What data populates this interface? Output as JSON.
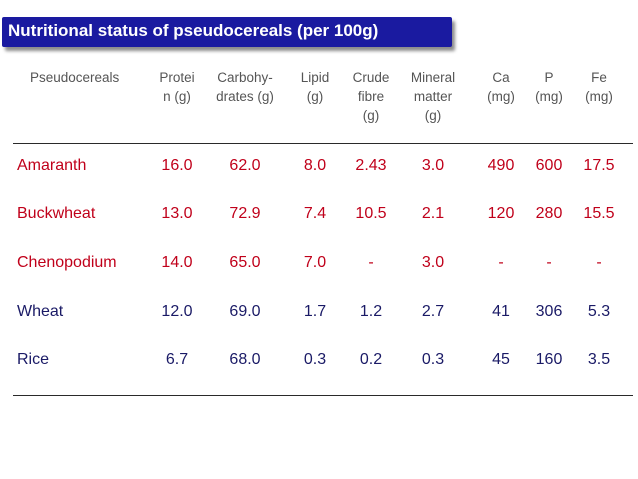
{
  "title": "Nutritional status of pseudocereals (per 100g)",
  "colors": {
    "title_bg": "#1a1aa0",
    "title_text": "#ffffff",
    "accent": "#c0001a",
    "row_text": "#1a1a66"
  },
  "table": {
    "headers": [
      "Pseudocereals",
      "Protei\nn (g)",
      "Carbohy-\ndrates (g)",
      "Lipid\n(g)",
      "Crude\nfibre\n(g)",
      "Mineral\nmatter\n(g)",
      "Ca\n(mg)",
      "P\n(mg)",
      "Fe\n(mg)"
    ],
    "rows": [
      {
        "name": "Amaranth",
        "values": [
          "16.0",
          "62.0",
          "8.0",
          "2.43",
          "3.0",
          "490",
          "600",
          "17.5"
        ],
        "highlight": true
      },
      {
        "name": "Buckwheat",
        "values": [
          "13.0",
          "72.9",
          "7.4",
          "10.5",
          "2.1",
          "120",
          "280",
          "15.5"
        ],
        "highlight": true
      },
      {
        "name": "Chenopodium",
        "values": [
          "14.0",
          "65.0",
          "7.0",
          "-",
          "3.0",
          "-",
          "-",
          "-"
        ],
        "highlight": true
      },
      {
        "name": "Wheat",
        "values": [
          "12.0",
          "69.0",
          "1.7",
          "1.2",
          "2.7",
          "41",
          "306",
          "5.3"
        ],
        "highlight": false
      },
      {
        "name": "Rice",
        "values": [
          "6.7",
          "68.0",
          "0.3",
          "0.2",
          "0.3",
          "45",
          "160",
          "3.5"
        ],
        "highlight": false
      }
    ]
  }
}
